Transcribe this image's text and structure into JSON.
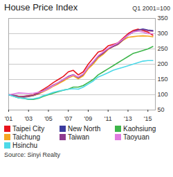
{
  "chart_data": {
    "type": "line",
    "title": "House Price Index",
    "subtitle": "Q1 2001=100",
    "source": "Source: Sinyi Realty",
    "x": [
      2001,
      2001.5,
      2002,
      2002.5,
      2003,
      2003.5,
      2004,
      2004.5,
      2005,
      2005.5,
      2006,
      2006.5,
      2007,
      2007.5,
      2008,
      2008.5,
      2009,
      2009.5,
      2010,
      2010.5,
      2011,
      2011.5,
      2012,
      2012.5,
      2013,
      2013.5,
      2014,
      2014.5,
      2015,
      2015.5
    ],
    "series": [
      {
        "name": "Taipei City",
        "color": "#e8141d",
        "values": [
          100,
          97,
          95,
          95,
          97,
          100,
          108,
          118,
          128,
          140,
          150,
          160,
          175,
          180,
          165,
          175,
          200,
          220,
          240,
          245,
          260,
          265,
          270,
          285,
          300,
          310,
          315,
          310,
          305,
          295
        ]
      },
      {
        "name": "New North",
        "color": "#3b3b9e",
        "values": [
          100,
          97,
          93,
          92,
          94,
          97,
          103,
          112,
          120,
          130,
          138,
          148,
          158,
          165,
          155,
          165,
          188,
          205,
          225,
          235,
          250,
          258,
          265,
          280,
          295,
          305,
          312,
          315,
          312,
          310
        ]
      },
      {
        "name": "Kaohsiung",
        "color": "#3cb54a",
        "values": [
          100,
          95,
          90,
          88,
          85,
          85,
          88,
          95,
          100,
          105,
          110,
          115,
          118,
          125,
          125,
          130,
          140,
          150,
          165,
          175,
          185,
          195,
          205,
          215,
          225,
          235,
          240,
          245,
          250,
          258
        ]
      },
      {
        "name": "Taichung",
        "color": "#f5a623",
        "values": [
          100,
          97,
          94,
          93,
          95,
          98,
          103,
          110,
          118,
          128,
          136,
          145,
          155,
          162,
          152,
          162,
          185,
          200,
          220,
          232,
          248,
          258,
          265,
          278,
          288,
          290,
          292,
          293,
          292,
          290
        ]
      },
      {
        "name": "Taiwan",
        "color": "#8e3a8e",
        "values": [
          100,
          98,
          95,
          94,
          96,
          99,
          105,
          113,
          122,
          132,
          140,
          150,
          160,
          166,
          157,
          167,
          190,
          207,
          226,
          236,
          250,
          258,
          266,
          280,
          296,
          306,
          312,
          313,
          310,
          308
        ]
      },
      {
        "name": "Taoyuan",
        "color": "#e07be0",
        "values": [
          100,
          103,
          106,
          105,
          104,
          105,
          108,
          112,
          120,
          130,
          140,
          150,
          158,
          165,
          158,
          168,
          190,
          208,
          228,
          240,
          252,
          262,
          270,
          282,
          295,
          305,
          308,
          305,
          300,
          300
        ]
      },
      {
        "name": "Hsinchu",
        "color": "#4dd9e8",
        "values": [
          100,
          95,
          90,
          88,
          86,
          87,
          90,
          97,
          102,
          108,
          112,
          115,
          118,
          120,
          118,
          125,
          135,
          145,
          158,
          165,
          172,
          180,
          185,
          190,
          195,
          200,
          205,
          210,
          212,
          212
        ]
      }
    ],
    "xlim": [
      2001,
      2015.75
    ],
    "xticks": [
      {
        "value": 2001,
        "label": "'01"
      },
      {
        "value": 2003,
        "label": "'03"
      },
      {
        "value": 2005,
        "label": "'05"
      },
      {
        "value": 2007,
        "label": "'07"
      },
      {
        "value": 2009,
        "label": "'09"
      },
      {
        "value": 2011,
        "label": "'11"
      },
      {
        "value": 2013,
        "label": "'13"
      },
      {
        "value": 2015,
        "label": "'15"
      }
    ],
    "ylim": [
      50,
      350
    ],
    "yticks": [
      50,
      100,
      150,
      200,
      250,
      300,
      350
    ],
    "grid": true,
    "legend": "bottom"
  }
}
